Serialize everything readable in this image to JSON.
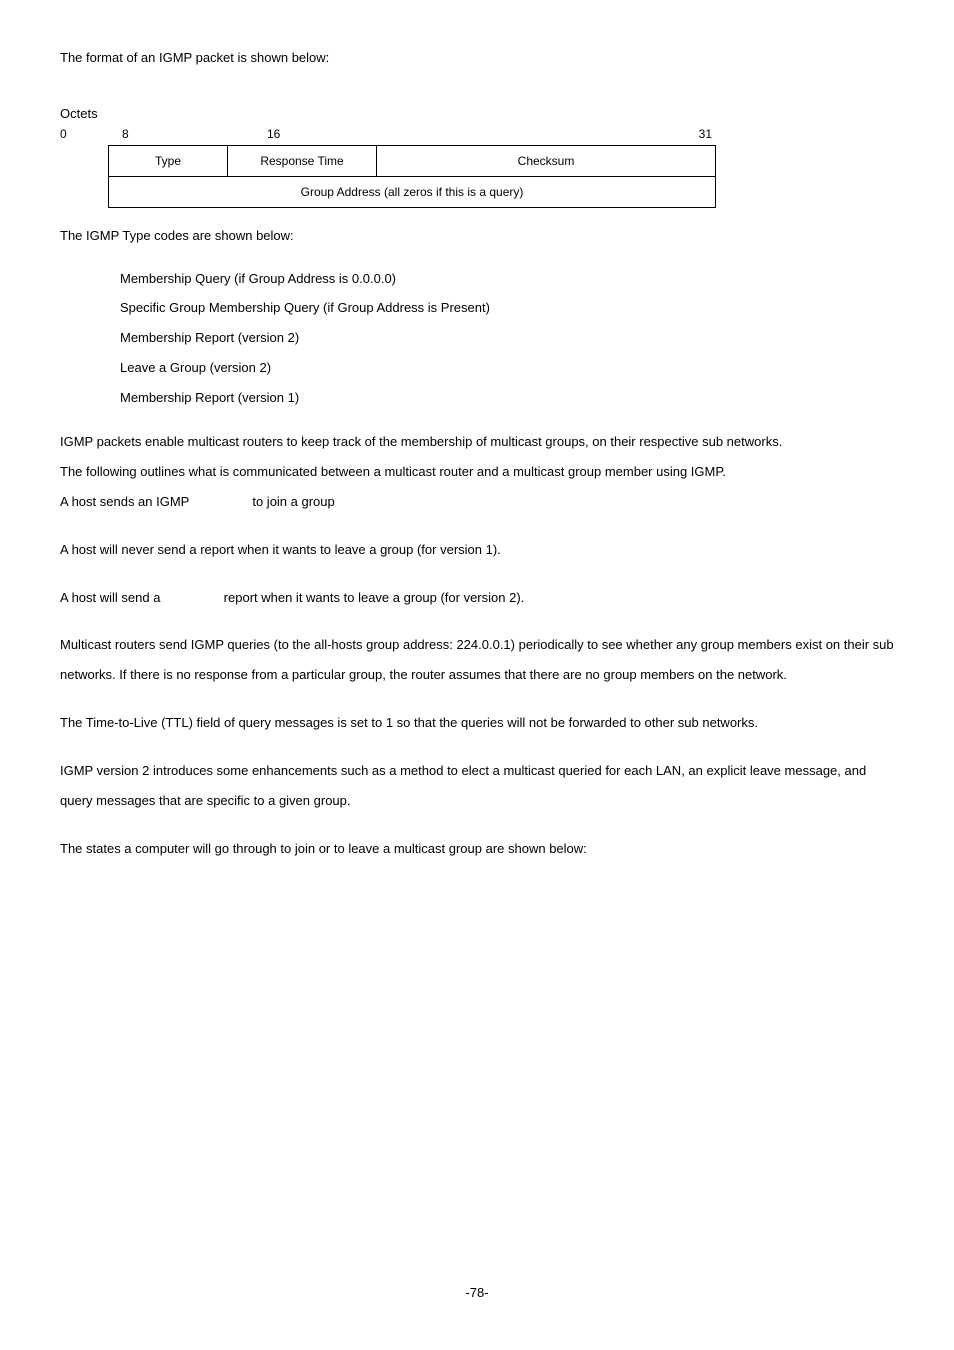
{
  "intro": "The format of an IGMP packet is shown below:",
  "octets_label": "Octets",
  "ruler": {
    "c0": "0",
    "c8": "8",
    "c16": "16",
    "c31": "31"
  },
  "packet": {
    "type": "Type",
    "response_time": "Response Time",
    "checksum": "Checksum",
    "group_address": "Group Address (all zeros if this is a query)"
  },
  "type_codes_intro": "The IGMP Type codes are shown below:",
  "type_codes": [
    "Membership Query (if Group Address is 0.0.0.0)",
    "Specific Group Membership Query (if Group Address is Present)",
    "Membership Report (version 2)",
    "Leave a Group (version 2)",
    "Membership Report (version 1)"
  ],
  "p1a": "IGMP packets enable multicast routers to keep track of the membership of multicast groups, on their respective sub networks.",
  "p1b": "The following outlines what is communicated between a multicast router and a multicast group member using IGMP.",
  "p1c_pre": "A host sends an IGMP ",
  "p1c_post": " to join a group",
  "p2": "A host will never send a report when it wants to leave a group (for version 1).",
  "p3_pre": "A host will send a ",
  "p3_post": " report when it wants to leave a group (for version 2).",
  "p4": "Multicast routers send IGMP queries (to the all-hosts group address: 224.0.0.1) periodically to see whether any group members exist on their sub networks. If there is no response from a particular group, the router assumes that there are no group members on the network.",
  "p5": "The Time-to-Live (TTL) field of query messages is set to 1 so that the queries will not be forwarded to other sub networks.",
  "p6": "IGMP version 2 introduces some enhancements such as a method to elect a multicast queried for each LAN, an explicit leave message, and query messages that are specific to a given group.",
  "p7": "The states a computer will go through to join or to leave a multicast group are shown below:",
  "page_number": "-78-"
}
